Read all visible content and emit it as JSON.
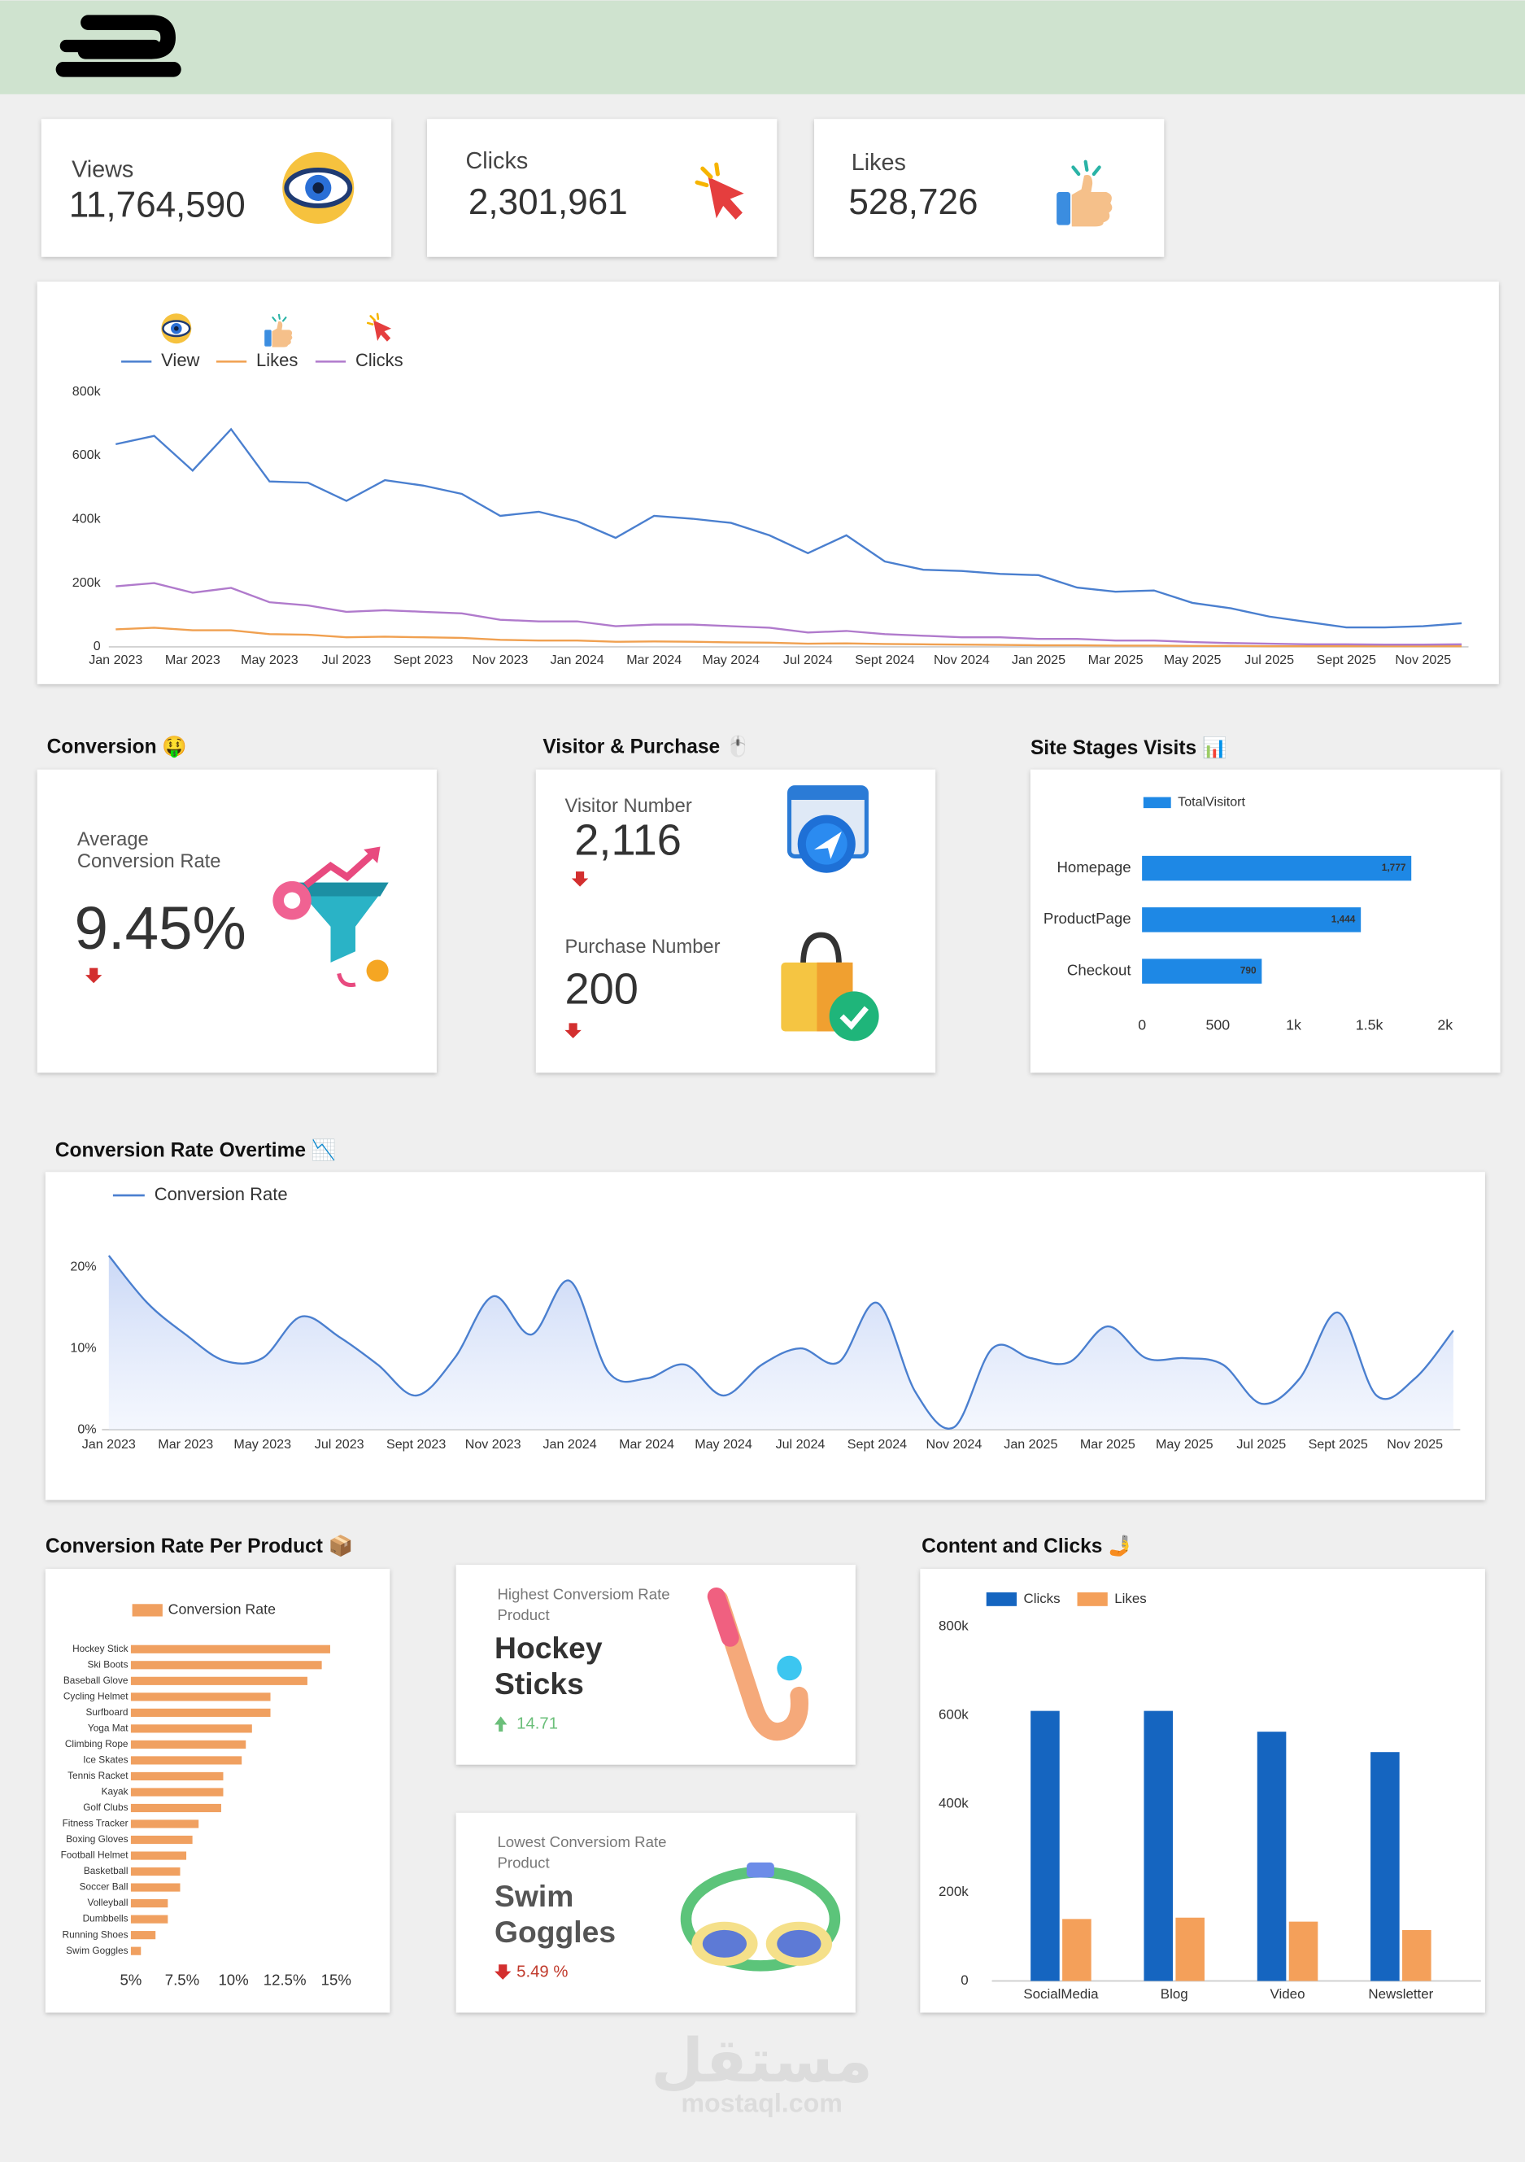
{
  "kpis": [
    {
      "label": "Views",
      "value": "11,764,590"
    },
    {
      "label": "Clicks",
      "value": "2,301,961"
    },
    {
      "label": "Likes",
      "value": "528,726"
    }
  ],
  "conversion": {
    "title": "Conversion 🤑",
    "label": [
      "Average",
      "Conversion Rate"
    ],
    "value": "9.45%"
  },
  "visitor_purchase": {
    "title": "Visitor & Purchase 🖱️",
    "visitor_label": "Visitor Number",
    "visitor_value": "2,116",
    "purchase_label": "Purchase Number",
    "purchase_value": "200"
  },
  "highest": {
    "label": [
      "Highest Conversiom Rate",
      "Product"
    ],
    "product": [
      "Hockey",
      "Sticks"
    ],
    "value": "14.71"
  },
  "lowest": {
    "label": [
      "Lowest Conversiom Rate",
      "Product"
    ],
    "product": [
      "Swim",
      "Goggles"
    ],
    "value": "5.49 %"
  },
  "watermark": [
    "مستقل",
    "mostaql.com"
  ],
  "chart_data": [
    {
      "type": "line",
      "categories": [
        "Jan 2023",
        null,
        "Mar 2023",
        null,
        "May 2023",
        null,
        "Jul 2023",
        null,
        "Sept 2023",
        null,
        "Nov 2023",
        null,
        "Jan 2024",
        null,
        "Mar 2024",
        null,
        "May 2024",
        null,
        "Jul 2024",
        null,
        "Sept 2024",
        null,
        "Nov 2024",
        null,
        "Jan 2025",
        null,
        "Mar 2025",
        null,
        "May 2025",
        null,
        "Jul 2025",
        null,
        "Sept 2025",
        null,
        "Nov 2025",
        null
      ],
      "series": [
        {
          "name": "View",
          "color": "#4a7fcf",
          "values": [
            636000,
            662000,
            553000,
            683000,
            519000,
            515000,
            458000,
            523000,
            506000,
            480000,
            411000,
            424000,
            394000,
            342000,
            411000,
            402000,
            389000,
            350000,
            294000,
            350000,
            268000,
            242000,
            238000,
            229000,
            225000,
            186000,
            173000,
            177000,
            138000,
            121000,
            95000,
            78000,
            61000,
            61000,
            65000,
            74000
          ]
        },
        {
          "name": "Likes",
          "color": "#f0a050",
          "values": [
            55000,
            60000,
            52000,
            52000,
            40000,
            38000,
            30000,
            32000,
            30000,
            28000,
            22000,
            20000,
            20000,
            16000,
            17000,
            16000,
            14000,
            13000,
            10000,
            11000,
            9000,
            8000,
            7000,
            6000,
            5000,
            5000,
            4000,
            4000,
            3000,
            3000,
            2000,
            2000,
            2000,
            2000,
            2000,
            2000
          ]
        },
        {
          "name": "Clicks",
          "color": "#b07acc",
          "values": [
            190000,
            200000,
            170000,
            185000,
            140000,
            130000,
            110000,
            115000,
            110000,
            105000,
            85000,
            80000,
            80000,
            65000,
            70000,
            70000,
            65000,
            60000,
            45000,
            50000,
            40000,
            35000,
            30000,
            30000,
            25000,
            25000,
            20000,
            20000,
            15000,
            12000,
            10000,
            8000,
            8000,
            7000,
            7000,
            8000
          ]
        }
      ],
      "ylim": [
        0,
        800000
      ],
      "yticks": [
        0,
        {
          "value": 200000,
          "label": "200k"
        },
        {
          "value": 400000,
          "label": "400k"
        },
        {
          "value": 600000,
          "label": "600k"
        },
        {
          "value": 800000,
          "label": "800k"
        }
      ]
    },
    {
      "type": "bar",
      "orientation": "horizontal",
      "title": "Site Stages Visits 📊",
      "categories": [
        "Homepage",
        "ProductPage",
        "Checkout"
      ],
      "series": [
        {
          "name": "TotalVisitort",
          "color": "#1e88e5",
          "values": [
            1777,
            1444,
            790
          ],
          "value_labels": [
            "1,777",
            "1,444",
            "790"
          ]
        }
      ],
      "xlim": [
        0,
        2000
      ],
      "xticks": [
        0,
        500,
        {
          "value": 1000,
          "label": "1k"
        },
        {
          "value": 1500,
          "label": "1.5k"
        },
        {
          "value": 2000,
          "label": "2k"
        }
      ]
    },
    {
      "type": "line",
      "title": "Conversion Rate Overtime 📉",
      "area": true,
      "smooth": true,
      "categories": [
        "Jan 2023",
        null,
        "Mar 2023",
        null,
        "May 2023",
        null,
        "Jul 2023",
        null,
        "Sept 2023",
        null,
        "Nov 2023",
        null,
        "Jan 2024",
        null,
        "Mar 2024",
        null,
        "May 2024",
        null,
        "Jul 2024",
        null,
        "Sept 2024",
        null,
        "Nov 2024",
        null,
        "Jan 2025",
        null,
        "Mar 2025",
        null,
        "May 2025",
        null,
        "Jul 2025",
        null,
        "Sept 2025",
        null,
        "Nov 2025",
        null
      ],
      "series": [
        {
          "name": "Conversion Rate",
          "color": "#4a7fcf",
          "values": [
            21.4,
            15.6,
            11.7,
            8.5,
            8.8,
            13.9,
            11.4,
            8.0,
            4.2,
            8.8,
            16.4,
            11.7,
            18.3,
            7.1,
            6.3,
            8.0,
            4.2,
            8.0,
            10.0,
            8.3,
            15.6,
            4.6,
            0.3,
            10.0,
            8.8,
            8.3,
            12.7,
            8.8,
            8.8,
            8.0,
            3.2,
            6.3,
            14.4,
            4.2,
            6.3,
            12.2
          ]
        }
      ],
      "ylim": [
        0,
        22
      ],
      "yticks": [
        {
          "value": 0,
          "label": "0%"
        },
        {
          "value": 10,
          "label": "10%"
        },
        {
          "value": 20,
          "label": "20%"
        }
      ]
    },
    {
      "type": "bar",
      "orientation": "horizontal",
      "title": "Conversion Rate Per Product 📦",
      "categories": [
        "Hockey Stick",
        "Ski Boots",
        "Baseball Glove",
        "Cycling Helmet",
        "Surfboard",
        "Yoga Mat",
        "Climbing Rope",
        "Ice Skates",
        "Tennis Racket",
        "Kayak",
        "Golf Clubs",
        "Fitness Tracker",
        "Boxing Gloves",
        "Football Helmet",
        "Basketball",
        "Soccer Ball",
        "Volleyball",
        "Dumbbells",
        "Running Shoes",
        "Swim Goggles"
      ],
      "series": [
        {
          "name": "Conversion Rate",
          "color": "#f0a060",
          "values": [
            14.71,
            14.3,
            13.6,
            11.8,
            11.8,
            10.9,
            10.6,
            10.4,
            9.5,
            9.5,
            9.4,
            8.3,
            8.0,
            7.7,
            7.4,
            7.4,
            6.8,
            6.8,
            6.2,
            5.49
          ]
        }
      ],
      "xlim": [
        5,
        16
      ],
      "xticks": [
        {
          "value": 5,
          "label": "5%"
        },
        {
          "value": 7.5,
          "label": "7.5%"
        },
        {
          "value": 10,
          "label": "10%"
        },
        {
          "value": 12.5,
          "label": "12.5%"
        },
        {
          "value": 15,
          "label": "15%"
        }
      ]
    },
    {
      "type": "bar",
      "orientation": "vertical",
      "title": "Content and Clicks 🤳",
      "categories": [
        "SocialMedia",
        "Blog",
        "Video",
        "Newsletter"
      ],
      "series": [
        {
          "name": "Clicks",
          "color": "#1565c0",
          "values": [
            610000,
            610000,
            563000,
            517000
          ]
        },
        {
          "name": "Likes",
          "color": "#f4a05a",
          "values": [
            140000,
            143000,
            134000,
            115000
          ]
        }
      ],
      "ylim": [
        0,
        800000
      ],
      "yticks": [
        0,
        {
          "value": 200000,
          "label": "200k"
        },
        {
          "value": 400000,
          "label": "400k"
        },
        {
          "value": 600000,
          "label": "600k"
        },
        {
          "value": 800000,
          "label": "800k"
        }
      ]
    }
  ]
}
